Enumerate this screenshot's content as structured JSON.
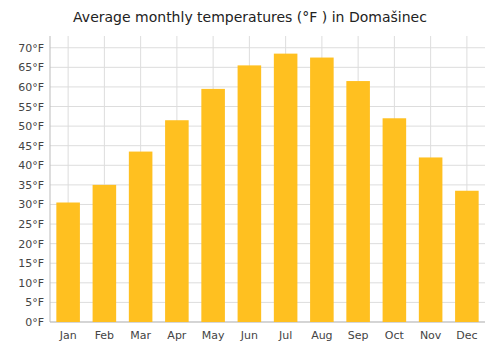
{
  "chart_data": {
    "type": "bar",
    "title": "Average monthly temperatures (°F ) in Domašinec",
    "categories": [
      "Jan",
      "Feb",
      "Mar",
      "Apr",
      "May",
      "Jun",
      "Jul",
      "Aug",
      "Sep",
      "Oct",
      "Nov",
      "Dec"
    ],
    "values": [
      30.5,
      35.0,
      43.5,
      51.5,
      59.5,
      65.5,
      68.5,
      67.5,
      61.5,
      52.0,
      42.0,
      33.5
    ],
    "color": "#FFC020",
    "ylim": [
      0,
      73
    ],
    "yticks": [
      {
        "value": 0,
        "label": "0°F"
      },
      {
        "value": 5,
        "label": "5°F"
      },
      {
        "value": 10,
        "label": "10°F"
      },
      {
        "value": 15,
        "label": "15°F"
      },
      {
        "value": 20,
        "label": "20°F"
      },
      {
        "value": 25,
        "label": "25°F"
      },
      {
        "value": 30,
        "label": "30°F"
      },
      {
        "value": 35,
        "label": "35°F"
      },
      {
        "value": 40,
        "label": "40°F"
      },
      {
        "value": 45,
        "label": "45°F"
      },
      {
        "value": 50,
        "label": "50°F"
      },
      {
        "value": 55,
        "label": "55°F"
      },
      {
        "value": 60,
        "label": "60°F"
      },
      {
        "value": 65,
        "label": "65°F"
      },
      {
        "value": 70,
        "label": "70°F"
      }
    ],
    "grid": true
  }
}
